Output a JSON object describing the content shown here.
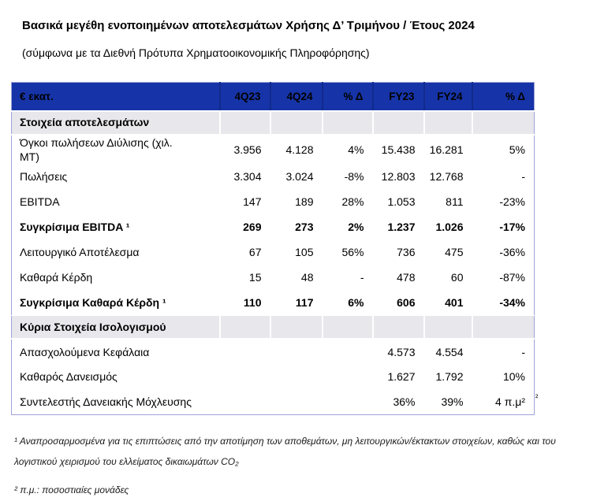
{
  "page": {
    "title": "Βασικά μεγέθη ενοποιημένων αποτελεσμάτων Χρήσης Δ’ Τριμήνου / Έτους 2024",
    "subtitle": "(σύμφωνα με τα Διεθνή Πρότυπα Χρηματοοικονομικής Πληροφόρησης)"
  },
  "colors": {
    "header_bg": "#1634a8",
    "header_separator": "#122a8c",
    "section_bg": "#e7e7ec",
    "table_border": "#9fa3d6"
  },
  "table": {
    "unit_label": "€ εκατ.",
    "columns": [
      "4Q23",
      "4Q24",
      "% Δ",
      "FY23",
      "FY24",
      "% Δ"
    ],
    "rows": [
      {
        "type": "section",
        "label": "Στοιχεία αποτελεσμάτων",
        "values": [
          "",
          "",
          "",
          "",
          "",
          ""
        ]
      },
      {
        "type": "data",
        "label": "Όγκοι πωλήσεων Διύλισης (χιλ.\nΜΤ)",
        "values": [
          "3.956",
          "4.128",
          "4%",
          "15.438",
          "16.281",
          "5%"
        ]
      },
      {
        "type": "data",
        "label": "Πωλήσεις",
        "values": [
          "3.304",
          "3.024",
          "-8%",
          "12.803",
          "12.768",
          "-"
        ]
      },
      {
        "type": "data",
        "label": "EBITDA",
        "values": [
          "147",
          "189",
          "28%",
          "1.053",
          "811",
          "-23%"
        ]
      },
      {
        "type": "data",
        "bold": true,
        "label": "Συγκρίσιμα EBITDA ¹",
        "values": [
          "269",
          "273",
          "2%",
          "1.237",
          "1.026",
          "-17%"
        ]
      },
      {
        "type": "data",
        "label": "Λειτουργικό Αποτέλεσμα",
        "values": [
          "67",
          "105",
          "56%",
          "736",
          "475",
          "-36%"
        ]
      },
      {
        "type": "data",
        "label": "Καθαρά Κέρδη",
        "values": [
          "15",
          "48",
          "-",
          "478",
          "60",
          "-87%"
        ]
      },
      {
        "type": "data",
        "bold": true,
        "label": "Συγκρίσιμα Καθαρά Κέρδη ¹",
        "values": [
          "110",
          "117",
          "6%",
          "606",
          "401",
          "-34%"
        ]
      },
      {
        "type": "section",
        "label": "Κύρια Στοιχεία Ισολογισμού",
        "values": [
          "",
          "",
          "",
          "",
          "",
          ""
        ]
      },
      {
        "type": "data",
        "label": "Απασχολούμενα Κεφάλαια",
        "values": [
          "",
          "",
          "",
          "4.573",
          "4.554",
          "-"
        ]
      },
      {
        "type": "data",
        "label": "Καθαρός Δανεισμός",
        "values": [
          "",
          "",
          "",
          "1.627",
          "1.792",
          "10%"
        ]
      },
      {
        "type": "data",
        "label": "Συντελεστής Δανειακής Μόχλευσης",
        "values": [
          "",
          "",
          "",
          "36%",
          "39%",
          "4 π.μ²"
        ]
      }
    ],
    "stray_superscript": "²"
  },
  "footnotes": [
    "¹ Αναπροσαρμοσμένα για τις επιπτώσεις από την αποτίμηση των αποθεμάτων, μη λειτουργικών/έκτακτων στοιχείων, καθώς και του λογιστικού χειρισμού του ελλείματος δικαιωμάτων CO₂",
    "² π.μ.: ποσοστιαίες μονάδες"
  ]
}
